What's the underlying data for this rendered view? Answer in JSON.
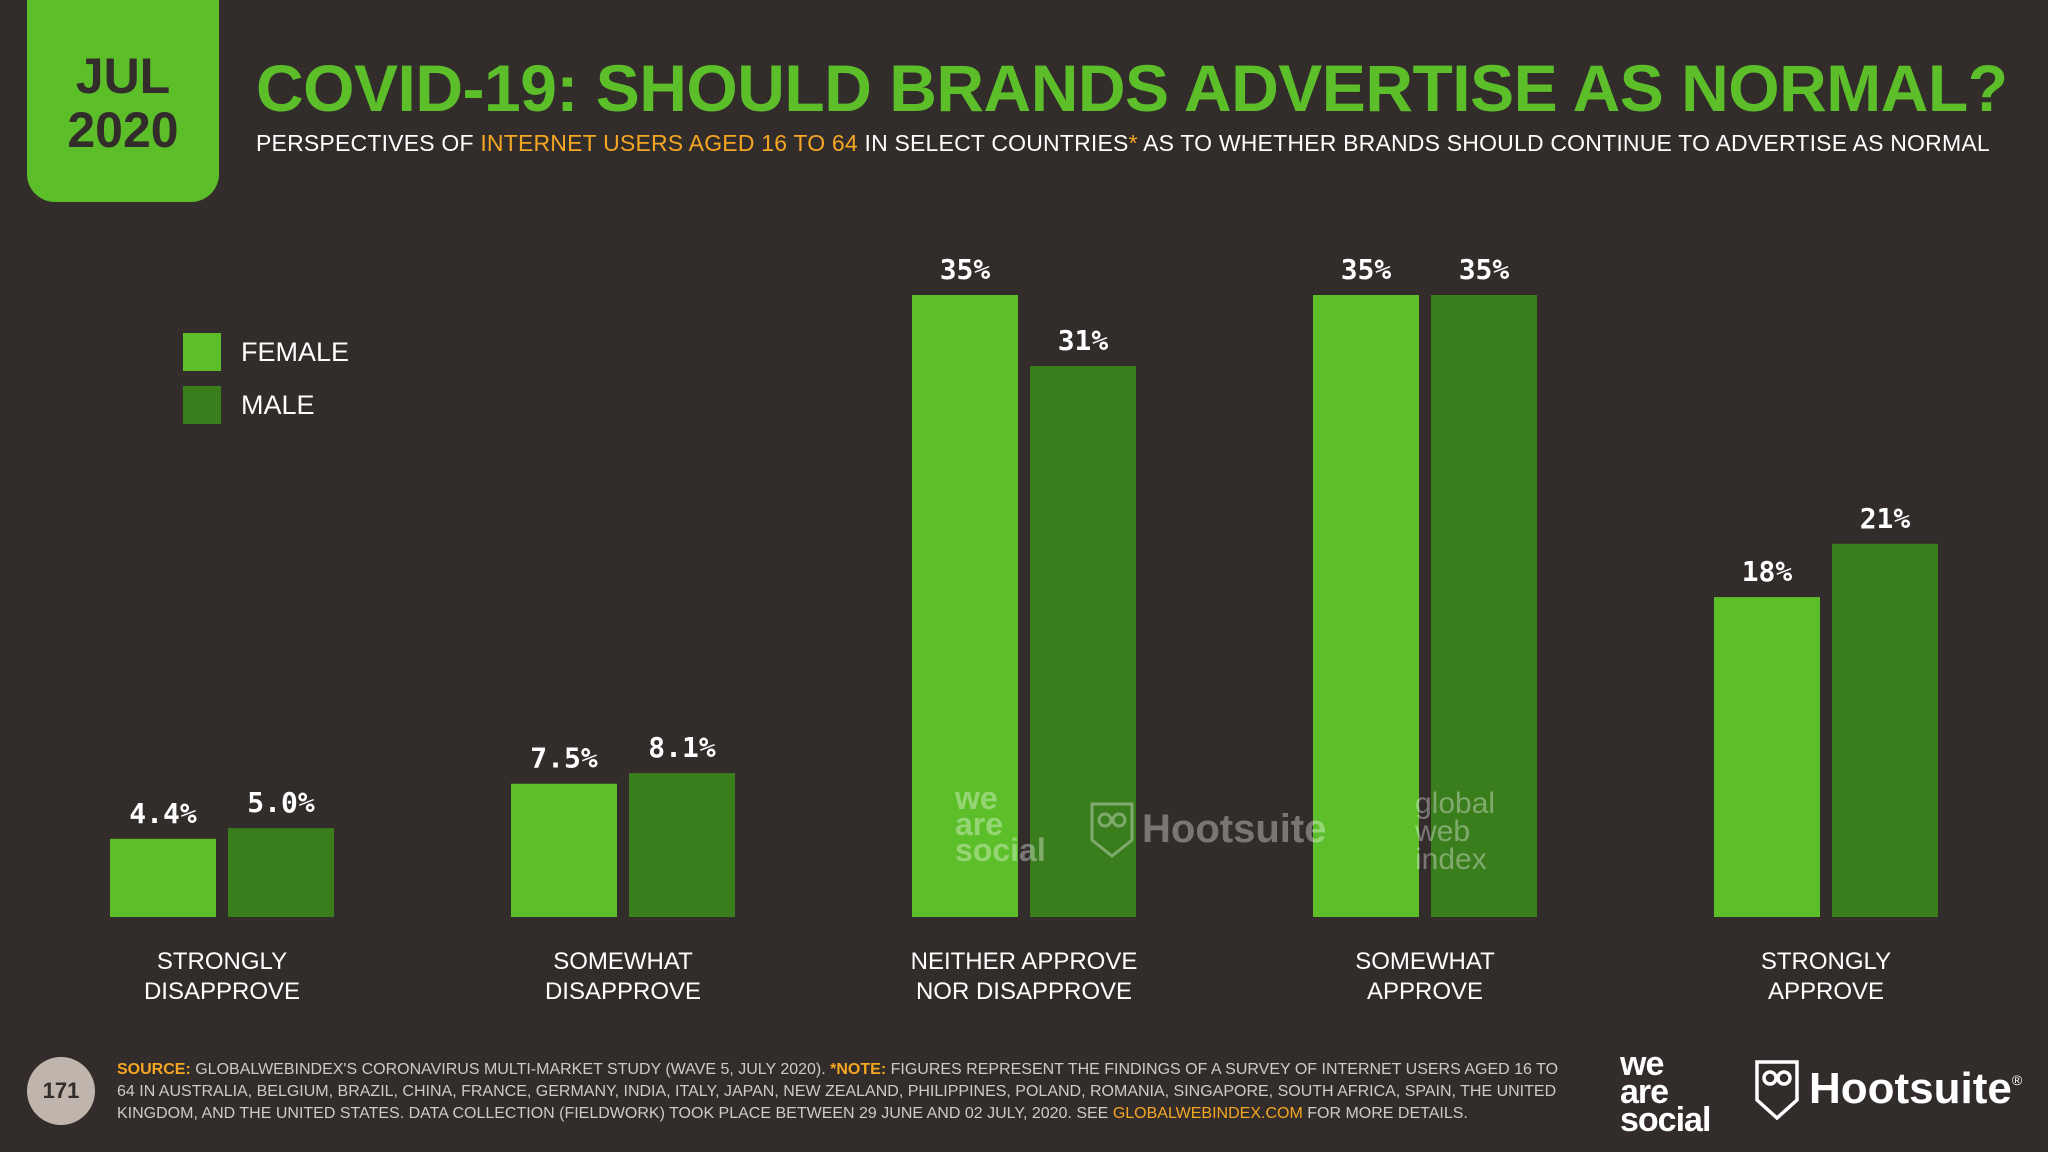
{
  "badge": {
    "month": "JUL",
    "year": "2020"
  },
  "title": "COVID-19: SHOULD BRANDS ADVERTISE AS NORMAL?",
  "subtitle": {
    "part1": "PERSPECTIVES OF",
    "highlight": "INTERNET USERS AGED 16 TO 64",
    "part2": "IN SELECT COUNTRIES",
    "asterisk": "*",
    "part3": "AS TO WHETHER BRANDS SHOULD CONTINUE TO ADVERTISE AS NORMAL"
  },
  "colors": {
    "female": "#5cbf2a",
    "male": "#3a7d1c",
    "accent": "#f5a623",
    "background": "#322d2b"
  },
  "legend": [
    {
      "label": "FEMALE",
      "color": "#5cbf2a"
    },
    {
      "label": "MALE",
      "color": "#3a7d1c"
    }
  ],
  "chart_data": {
    "type": "bar",
    "title": "COVID-19: SHOULD BRANDS ADVERTISE AS NORMAL?",
    "categories": [
      [
        "STRONGLY",
        "DISAPPROVE"
      ],
      [
        "SOMEWHAT",
        "DISAPPROVE"
      ],
      [
        "NEITHER APPROVE",
        "NOR DISAPPROVE"
      ],
      [
        "SOMEWHAT",
        "APPROVE"
      ],
      [
        "STRONGLY",
        "APPROVE"
      ]
    ],
    "series": [
      {
        "name": "FEMALE",
        "values": [
          4.4,
          7.5,
          35,
          35,
          18
        ],
        "labels": [
          "4.4%",
          "7.5%",
          "35%",
          "35%",
          "18%"
        ]
      },
      {
        "name": "MALE",
        "values": [
          5.0,
          8.1,
          31,
          35,
          21
        ],
        "labels": [
          "5.0%",
          "8.1%",
          "31%",
          "35%",
          "21%"
        ]
      }
    ],
    "ylim": [
      0,
      35
    ],
    "xlabel": "",
    "ylabel": "",
    "grid": false,
    "legend_position": "top-left"
  },
  "watermarks": {
    "we_are_social": [
      "we",
      "are",
      "social"
    ],
    "hootsuite": "Hootsuite",
    "gwi": [
      "global",
      "web",
      "index"
    ]
  },
  "footer": {
    "page_number": "171",
    "source_label": "SOURCE:",
    "source_text": "GLOBALWEBINDEX'S CORONAVIRUS MULTI-MARKET STUDY (WAVE 5, JULY 2020).",
    "note_label": "*NOTE:",
    "note_text": "FIGURES REPRESENT THE FINDINGS OF A SURVEY OF INTERNET USERS AGED 16 TO 64 IN AUSTRALIA, BELGIUM, BRAZIL, CHINA, FRANCE, GERMANY, INDIA, ITALY, JAPAN, NEW ZEALAND, PHILIPPINES, POLAND, ROMANIA, SINGAPORE, SOUTH AFRICA, SPAIN, THE UNITED KINGDOM, AND THE UNITED STATES. DATA COLLECTION (FIELDWORK) TOOK PLACE BETWEEN 29 JUNE AND 02 JULY, 2020. SEE",
    "link": "GLOBALWEBINDEX.COM",
    "tail": "FOR MORE DETAILS."
  },
  "logos": {
    "we_are_social": [
      "we",
      "are",
      "social"
    ],
    "hootsuite": "Hootsuite",
    "registered": "®"
  }
}
